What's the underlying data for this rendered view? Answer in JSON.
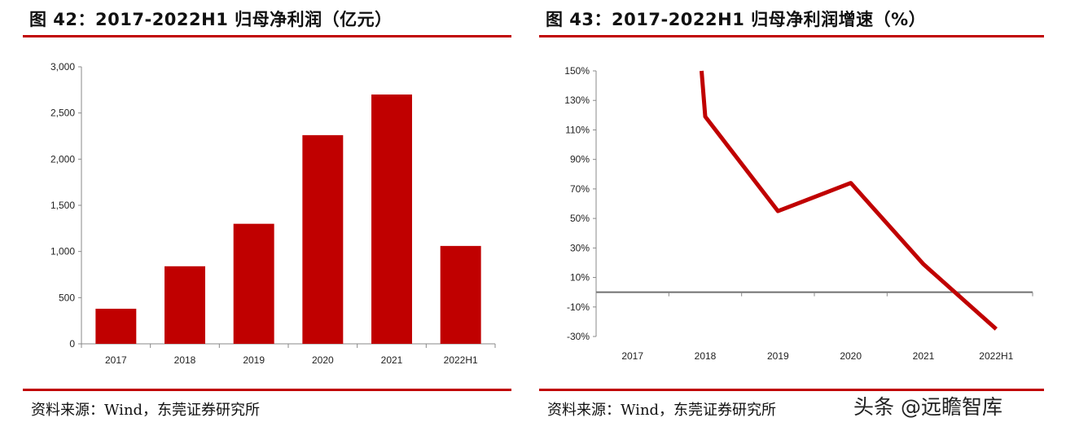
{
  "colors": {
    "accent": "#c00000",
    "axis": "#888888",
    "zero_line": "#707070"
  },
  "left": {
    "title": "图 42：2017-2022H1 归母净利润（亿元）",
    "source": "资料来源：Wind，东莞证券研究所"
  },
  "right": {
    "title": "图 43：2017-2022H1 归母净利润增速（%）",
    "source": "资料来源：Wind，东莞证券研究所"
  },
  "watermark": "头条 @远瞻智库",
  "chart_data": [
    {
      "type": "bar",
      "title": "图 42：2017-2022H1 归母净利润（亿元）",
      "categories": [
        "2017",
        "2018",
        "2019",
        "2020",
        "2021",
        "2022H1"
      ],
      "values": [
        380,
        840,
        1300,
        2260,
        2700,
        1060
      ],
      "ylim": [
        0,
        3000
      ],
      "yticks": [
        0,
        500,
        1000,
        1500,
        2000,
        2500,
        3000
      ],
      "ytick_labels": [
        "0",
        "500",
        "1,000",
        "1,500",
        "2,000",
        "2,500",
        "3,000"
      ],
      "xlabel": "",
      "ylabel": "",
      "grid": false,
      "color": "#c00000"
    },
    {
      "type": "line",
      "title": "图 43：2017-2022H1 归母净利润增速（%）",
      "categories": [
        "2017",
        "2018",
        "2019",
        "2020",
        "2021",
        "2022H1"
      ],
      "series": [
        {
          "values": [
            null,
            119,
            55,
            74,
            19,
            -25
          ],
          "start_value": 150
        }
      ],
      "ylim": [
        -30,
        150
      ],
      "yticks": [
        -30,
        -10,
        10,
        30,
        50,
        70,
        90,
        110,
        130,
        150
      ],
      "ytick_labels": [
        "-30%",
        "-10%",
        "10%",
        "30%",
        "50%",
        "70%",
        "90%",
        "110%",
        "130%",
        "150%"
      ],
      "xlabel": "",
      "ylabel": "",
      "grid": false,
      "color": "#c00000"
    }
  ]
}
